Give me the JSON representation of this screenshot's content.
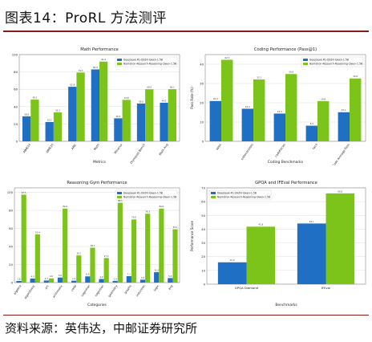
{
  "page": {
    "title": "图表14：ProRL 方法测评",
    "source": "资料来源：英伟达，中邮证券研究所"
  },
  "colors": {
    "blue": "#1f6fc5",
    "green": "#7cc41a",
    "accent": "#8b1a1a"
  },
  "chart_data": [
    {
      "type": "bar",
      "title": "Math Performance",
      "xlabel": "Metrics",
      "ylabel": "",
      "ylim": [
        0,
        100
      ],
      "yticks": [
        0,
        20,
        40,
        60,
        80,
        100
      ],
      "legend_position": "top-right",
      "categories": [
        "AIME24",
        "AIME25",
        "AMC",
        "Math",
        "Minerva",
        "Olympiad Bench",
        "Math Avg"
      ],
      "series": [
        {
          "name": "DeepSeek-R1-Distill-Qwen-1.5B",
          "values": [
            28.8,
            22.2,
            62.9,
            82.9,
            26.5,
            43.6,
            44.5
          ]
        },
        {
          "name": "Nemotron-Research-Reasoning-Qwen-1.5B",
          "values": [
            48.1,
            33.3,
            79.3,
            91.9,
            47.8,
            60.0,
            60.1
          ]
        }
      ]
    },
    {
      "type": "bar",
      "title": "Coding Performance (Pass@1)",
      "xlabel": "Coding Benchmarks",
      "ylabel": "Pass Rate (%)",
      "ylim": [
        0,
        45
      ],
      "yticks": [
        0,
        10,
        20,
        30,
        40
      ],
      "legend_position": "top-right",
      "categories": [
        "apps",
        "codecontests",
        "codeforces",
        "taco",
        "Code Average Pass"
      ],
      "series": [
        {
          "name": "DeepSeek-R1-Distill-Qwen-1.5B",
          "values": [
            20.9,
            16.9,
            14.4,
            8.1,
            15.1
          ]
        },
        {
          "name": "Nemotron-Research-Reasoning-Qwen-1.5B",
          "values": [
            42.3,
            32.1,
            34.9,
            20.8,
            32.6
          ]
        }
      ]
    },
    {
      "type": "bar",
      "title": "Reasoning Gym Performance",
      "xlabel": "Categories",
      "ylabel": "",
      "ylim": [
        0,
        105
      ],
      "yticks": [
        0,
        20,
        40,
        60,
        80,
        100
      ],
      "legend_position": "top-right",
      "categories": [
        "algebra",
        "algorithmic",
        "arc",
        "arithmetic",
        "code",
        "cognition",
        "cognition",
        "geometry",
        "graphs",
        "induction",
        "logic",
        "avg"
      ],
      "series": [
        {
          "name": "DeepSeek-R1-Distill-Qwen-1.5B",
          "values": [
            1.8,
            4.5,
            2.3,
            5.6,
            2.1,
            6.9,
            4.0,
            1.9,
            7.1,
            3.2,
            11.5,
            5.0
          ]
        },
        {
          "name": "Nemotron-Research-Reasoning-Qwen-1.5B",
          "values": [
            97.5,
            53.4,
            4.6,
            82.0,
            30.1,
            38.7,
            27.2,
            88.5,
            70.0,
            76.3,
            82.0,
            59.1
          ]
        }
      ]
    },
    {
      "type": "bar",
      "title": "GPQA and IFEval Performance",
      "xlabel": "Benchmarks",
      "ylabel": "Performance Score",
      "ylim": [
        0,
        70
      ],
      "yticks": [
        0,
        10,
        20,
        30,
        40,
        50,
        60,
        70
      ],
      "legend_position": "top-left",
      "categories": [
        "GPQA Diamond",
        "IFEval"
      ],
      "series": [
        {
          "name": "DeepSeek-R1-Distill-Qwen-1.5B",
          "values": [
            15.9,
            44.1
          ]
        },
        {
          "name": "Nemotron-Research-Reasoning-Qwen-1.5B",
          "values": [
            41.8,
            66.0
          ]
        }
      ]
    }
  ]
}
